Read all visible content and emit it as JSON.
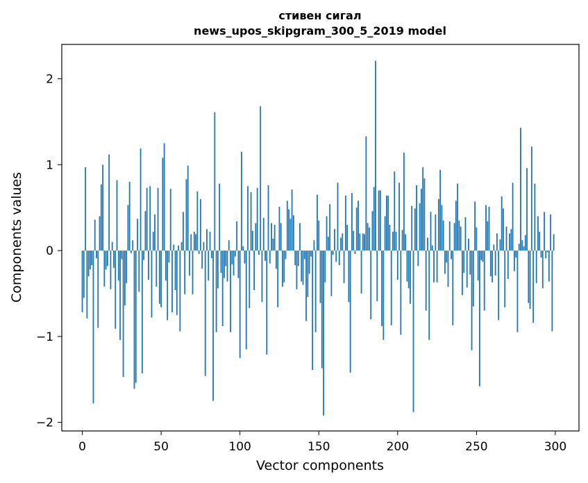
{
  "chart_data": {
    "type": "bar",
    "title": "стивен сигал",
    "subtitle": "news_upos_skipgram_300_5_2019 model",
    "xlabel": "Vector components",
    "ylabel": "Components values",
    "xlim": [
      -13,
      315
    ],
    "ylim": [
      -2.1,
      2.4
    ],
    "xticks": [
      0,
      50,
      100,
      150,
      200,
      250,
      300
    ],
    "yticks": [
      -2,
      -1,
      0,
      1,
      2
    ],
    "ytick_labels": [
      "−2",
      "−1",
      "0",
      "1",
      "2"
    ],
    "grid": false,
    "bar_color": "#1f77b4",
    "values": [
      -0.72,
      -0.55,
      0.97,
      -0.79,
      -0.3,
      -0.22,
      -0.17,
      -1.78,
      0.36,
      -0.09,
      -0.9,
      0.4,
      0.77,
      1.0,
      -0.42,
      -0.22,
      -0.18,
      1.12,
      -0.45,
      0.1,
      -0.2,
      -0.91,
      0.82,
      -0.35,
      -1.04,
      -0.1,
      -1.47,
      -0.64,
      -0.38,
      0.53,
      0.8,
      -0.03,
      0.12,
      -1.61,
      -1.54,
      0.37,
      -0.48,
      1.19,
      -1.43,
      -0.11,
      0.46,
      0.73,
      -0.34,
      0.75,
      -0.78,
      0.22,
      0.42,
      -0.42,
      0.73,
      -0.62,
      -0.66,
      1.08,
      1.25,
      -0.35,
      -0.81,
      -0.14,
      0.72,
      -0.72,
      0.07,
      -0.46,
      -0.75,
      0.06,
      -0.94,
      0.1,
      0.45,
      -0.51,
      0.83,
      0.99,
      -0.29,
      0.19,
      -0.51,
      0.22,
      0.19,
      0.69,
      -0.04,
      0.6,
      -0.21,
      0.1,
      -1.46,
      0.25,
      -0.35,
      0.22,
      -0.09,
      -1.75,
      1.61,
      -0.95,
      -0.44,
      0.78,
      -0.26,
      -0.88,
      -0.32,
      -0.18,
      -0.36,
      0.12,
      -0.95,
      -0.16,
      -0.29,
      -0.07,
      0.34,
      -0.32,
      -1.25,
      1.15,
      0.05,
      -0.15,
      -1.15,
      0.75,
      -0.67,
      0.68,
      0.23,
      -0.46,
      0.32,
      0.73,
      -0.05,
      1.68,
      -0.6,
      0.38,
      -0.12,
      -1.21,
      0.76,
      -0.15,
      0.32,
      0.14,
      0.3,
      -0.21,
      -0.66,
      0.51,
      0.32,
      -0.42,
      -0.37,
      -0.1,
      0.58,
      0.48,
      0.37,
      0.71,
      0.41,
      -0.17,
      -0.45,
      -0.18,
      0.32,
      -0.36,
      -0.4,
      -0.1,
      -0.82,
      -0.54,
      -0.27,
      -0.07,
      -1.39,
      0.12,
      -0.95,
      0.65,
      0.35,
      -0.61,
      -1.37,
      -1.92,
      -0.37,
      0.4,
      0.16,
      0.54,
      -0.53,
      -0.05,
      0.25,
      -0.13,
      0.79,
      -0.17,
      0.15,
      0.2,
      -0.38,
      0.64,
      0.3,
      -0.6,
      -1.42,
      0.67,
      0.23,
      -0.04,
      0.5,
      0.58,
      0.2,
      -0.5,
      0.2,
      0.19,
      1.33,
      0.32,
      0.27,
      -0.8,
      0.46,
      0.74,
      2.21,
      -0.59,
      0.7,
      0.7,
      -0.88,
      -1.04,
      0.4,
      0.64,
      0.64,
      0.3,
      -0.87,
      0.22,
      0.92,
      0.22,
      -0.34,
      0.79,
      -0.98,
      0.24,
      1.14,
      0.19,
      -0.36,
      -0.44,
      -0.62,
      0.52,
      -1.88,
      0.49,
      0.76,
      -0.18,
      0.55,
      0.72,
      0.97,
      0.84,
      -0.7,
      0.15,
      -1.04,
      0.45,
      0.06,
      -0.37,
      0.42,
      -0.37,
      0.6,
      0.94,
      0.53,
      0.35,
      -0.27,
      -0.14,
      -0.42,
      0.34,
      -0.1,
      -0.87,
      0.32,
      0.58,
      0.78,
      0.35,
      0.28,
      -0.52,
      -0.26,
      0.39,
      -0.43,
      0.14,
      -0.28,
      -1.16,
      -0.65,
      0.57,
      0.27,
      -0.35,
      -1.58,
      -0.11,
      -0.13,
      -0.7,
      0.53,
      0.34,
      0.51,
      -0.3,
      -0.37,
      0.07,
      -0.29,
      0.2,
      -0.81,
      0.13,
      0.63,
      0.49,
      -0.66,
      0.28,
      -0.33,
      0.2,
      0.25,
      0.79,
      -0.24,
      -0.08,
      -0.95,
      0.08,
      1.43,
      0.12,
      0.05,
      0.18,
      0.96,
      -0.61,
      -0.68,
      1.21,
      -0.84,
      0.78,
      -0.38,
      0.4,
      0.22,
      -0.08,
      -0.44,
      0.45,
      -0.09,
      -0.02,
      -0.36,
      0.42,
      -0.94,
      0.19
    ]
  }
}
